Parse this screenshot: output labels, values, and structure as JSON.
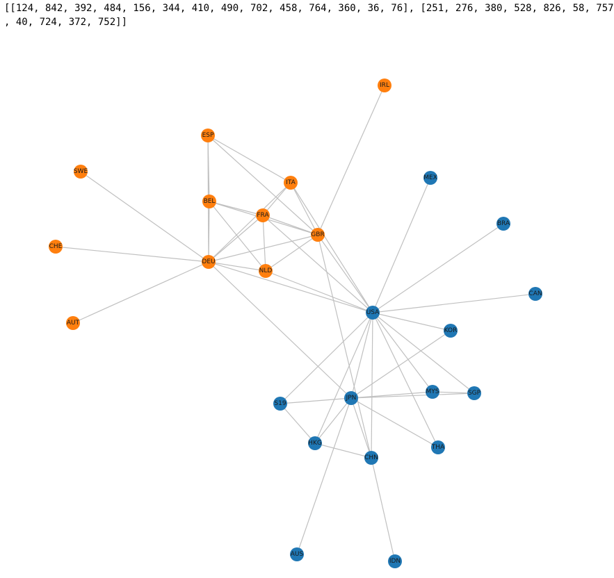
{
  "output": {
    "line1": "[[124, 842, 392, 484, 156, 344, 410, 490, 702, 458, 764, 360, 36, 76], [251, 276, 380, 528, 826, 58, 757",
    "line2": ", 40, 724, 372, 752]]"
  },
  "colors": {
    "group_a": "#ff7f0e",
    "group_b": "#1f77b4",
    "edge": "#c0c0c0"
  },
  "graph": {
    "nodes": [
      {
        "id": "IRL",
        "group": "group_a"
      },
      {
        "id": "ESP",
        "group": "group_a"
      },
      {
        "id": "SWE",
        "group": "group_a"
      },
      {
        "id": "ITA",
        "group": "group_a"
      },
      {
        "id": "BEL",
        "group": "group_a"
      },
      {
        "id": "FRA",
        "group": "group_a"
      },
      {
        "id": "GBR",
        "group": "group_a"
      },
      {
        "id": "CHE",
        "group": "group_a"
      },
      {
        "id": "DEU",
        "group": "group_a"
      },
      {
        "id": "NLD",
        "group": "group_a"
      },
      {
        "id": "AUT",
        "group": "group_a"
      },
      {
        "id": "MEX",
        "group": "group_b"
      },
      {
        "id": "BRA",
        "group": "group_b"
      },
      {
        "id": "CAN",
        "group": "group_b"
      },
      {
        "id": "USA",
        "group": "group_b"
      },
      {
        "id": "KOR",
        "group": "group_b"
      },
      {
        "id": "MYS",
        "group": "group_b"
      },
      {
        "id": "SGP",
        "group": "group_b"
      },
      {
        "id": "S19",
        "group": "group_b"
      },
      {
        "id": "JPN",
        "group": "group_b"
      },
      {
        "id": "HKG",
        "group": "group_b"
      },
      {
        "id": "CHN",
        "group": "group_b"
      },
      {
        "id": "THA",
        "group": "group_b"
      },
      {
        "id": "AUS",
        "group": "group_b"
      },
      {
        "id": "IDN",
        "group": "group_b"
      }
    ],
    "edges": [
      [
        "ESP",
        "BEL"
      ],
      [
        "ESP",
        "DEU"
      ],
      [
        "ESP",
        "ITA"
      ],
      [
        "ESP",
        "GBR"
      ],
      [
        "IRL",
        "GBR"
      ],
      [
        "SWE",
        "DEU"
      ],
      [
        "CHE",
        "DEU"
      ],
      [
        "AUT",
        "DEU"
      ],
      [
        "ITA",
        "FRA"
      ],
      [
        "ITA",
        "DEU"
      ],
      [
        "ITA",
        "GBR"
      ],
      [
        "ITA",
        "USA"
      ],
      [
        "BEL",
        "DEU"
      ],
      [
        "BEL",
        "FRA"
      ],
      [
        "BEL",
        "GBR"
      ],
      [
        "BEL",
        "NLD"
      ],
      [
        "FRA",
        "DEU"
      ],
      [
        "FRA",
        "GBR"
      ],
      [
        "FRA",
        "NLD"
      ],
      [
        "FRA",
        "USA"
      ],
      [
        "GBR",
        "DEU"
      ],
      [
        "GBR",
        "NLD"
      ],
      [
        "GBR",
        "USA"
      ],
      [
        "GBR",
        "CHN"
      ],
      [
        "DEU",
        "NLD"
      ],
      [
        "DEU",
        "USA"
      ],
      [
        "DEU",
        "JPN"
      ],
      [
        "NLD",
        "USA"
      ],
      [
        "MEX",
        "USA"
      ],
      [
        "BRA",
        "USA"
      ],
      [
        "CAN",
        "USA"
      ],
      [
        "USA",
        "KOR"
      ],
      [
        "USA",
        "SGP"
      ],
      [
        "USA",
        "MYS"
      ],
      [
        "USA",
        "THA"
      ],
      [
        "USA",
        "CHN"
      ],
      [
        "USA",
        "HKG"
      ],
      [
        "USA",
        "JPN"
      ],
      [
        "USA",
        "S19"
      ],
      [
        "KOR",
        "JPN"
      ],
      [
        "JPN",
        "MYS"
      ],
      [
        "JPN",
        "SGP"
      ],
      [
        "JPN",
        "S19"
      ],
      [
        "JPN",
        "HKG"
      ],
      [
        "JPN",
        "CHN"
      ],
      [
        "JPN",
        "THA"
      ],
      [
        "JPN",
        "AUS"
      ],
      [
        "S19",
        "HKG"
      ],
      [
        "HKG",
        "CHN"
      ],
      [
        "CHN",
        "IDN"
      ],
      [
        "MYS",
        "SGP"
      ]
    ]
  }
}
